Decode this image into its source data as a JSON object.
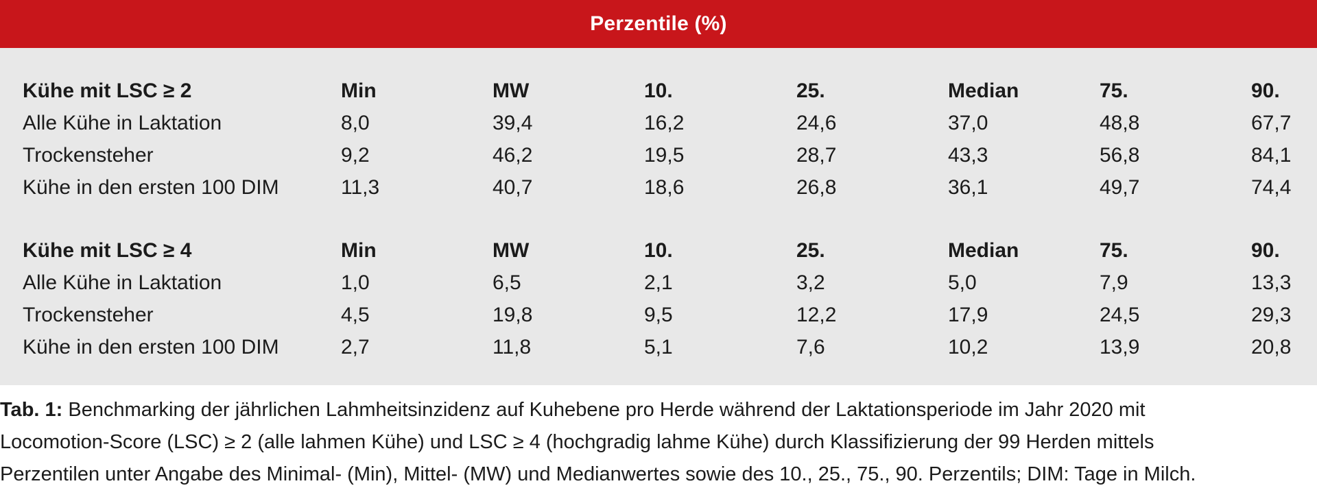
{
  "header": {
    "title": "Perzentile (%)"
  },
  "colors": {
    "header_bg": "#c8161b",
    "panel_bg": "#e8e8e8"
  },
  "sections": [
    {
      "header": [
        "Kühe mit LSC ≥ 2",
        "Min",
        "MW",
        "10.",
        "25.",
        "Median",
        "75.",
        "90."
      ],
      "rows": [
        [
          "Alle Kühe in Laktation",
          "8,0",
          "39,4",
          "16,2",
          "24,6",
          "37,0",
          "48,8",
          "67,7"
        ],
        [
          "Trockensteher",
          "9,2",
          "46,2",
          "19,5",
          "28,7",
          "43,3",
          "56,8",
          "84,1"
        ],
        [
          "Kühe in den ersten 100 DIM",
          "11,3",
          "40,7",
          "18,6",
          "26,8",
          "36,1",
          "49,7",
          "74,4"
        ]
      ]
    },
    {
      "header": [
        "Kühe mit LSC ≥ 4",
        "Min",
        "MW",
        "10.",
        "25.",
        "Median",
        "75.",
        "90."
      ],
      "rows": [
        [
          "Alle Kühe in Laktation",
          "1,0",
          "6,5",
          "2,1",
          "3,2",
          "5,0",
          "7,9",
          "13,3"
        ],
        [
          "Trockensteher",
          "4,5",
          "19,8",
          "9,5",
          "12,2",
          "17,9",
          "24,5",
          "29,3"
        ],
        [
          "Kühe in den ersten 100 DIM",
          "2,7",
          "11,8",
          "5,1",
          "7,6",
          "10,2",
          "13,9",
          "20,8"
        ]
      ]
    }
  ],
  "caption": {
    "label": "Tab. 1:",
    "lines": [
      " Benchmarking der jährlichen Lahmheitsinzidenz auf Kuhebene pro Herde während der Laktationsperiode im Jahr 2020 mit",
      "Locomotion-Score (LSC) ≥ 2 (alle lahmen Kühe) und LSC ≥ 4 (hochgradig lahme Kühe) durch Klassifizierung der 99 Herden mittels",
      "Perzentilen unter Angabe des Minimal- (Min), Mittel- (MW) und Medianwertes sowie des 10., 25., 75., 90. Perzentils; DIM: Tage in Milch."
    ]
  }
}
